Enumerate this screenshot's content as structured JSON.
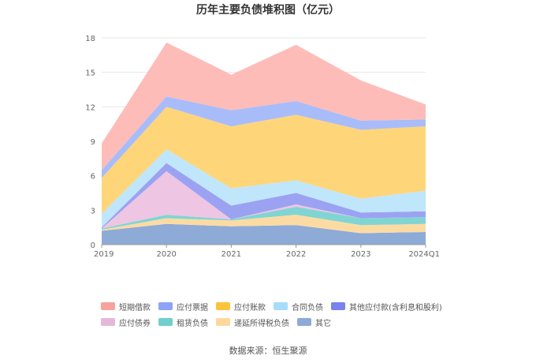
{
  "chart_data": {
    "type": "area",
    "title": "历年主要负债堆积图（亿元）",
    "categories": [
      "2019",
      "2020",
      "2021",
      "2022",
      "2023",
      "2024Q1"
    ],
    "yticks": [
      "0",
      "3",
      "6",
      "9",
      "12",
      "15",
      "18"
    ],
    "ylim": [
      0,
      18
    ],
    "grid": true,
    "legend_position": "bottom",
    "series": [
      {
        "name": "其它",
        "color": "#8eaad6",
        "values": [
          1.2,
          1.8,
          1.6,
          1.7,
          1.0,
          1.1
        ]
      },
      {
        "name": "递延所得税负债",
        "color": "#fcdba3",
        "values": [
          0.1,
          0.5,
          0.5,
          0.9,
          0.7,
          0.7
        ]
      },
      {
        "name": "租赁负债",
        "color": "#80d5d3",
        "values": [
          0.1,
          0.3,
          0.1,
          0.7,
          0.6,
          0.6
        ]
      },
      {
        "name": "应付债券",
        "color": "#eec5e2",
        "values": [
          0.0,
          3.8,
          0.0,
          0.2,
          0.0,
          0.0
        ]
      },
      {
        "name": "其他应付款(含利息和股利)",
        "color": "#9ca2f2",
        "values": [
          0.1,
          0.7,
          1.2,
          1.0,
          0.5,
          0.5
        ]
      },
      {
        "name": "合同负债",
        "color": "#bfe6fb",
        "values": [
          1.2,
          1.2,
          1.5,
          1.1,
          1.2,
          1.8
        ]
      },
      {
        "name": "应付账款",
        "color": "#fed679",
        "values": [
          3.1,
          3.7,
          5.4,
          5.7,
          6.0,
          5.6
        ]
      },
      {
        "name": "应付票据",
        "color": "#a9bcfa",
        "values": [
          0.7,
          0.9,
          1.4,
          1.2,
          0.8,
          0.6
        ]
      },
      {
        "name": "短期借款",
        "color": "#fdbcb8",
        "values": [
          2.3,
          4.7,
          3.1,
          4.9,
          3.5,
          1.3
        ]
      }
    ],
    "legend_order": [
      [
        "短期借款",
        "应付票据",
        "应付账款",
        "合同负债",
        "其他应付款(含利息和股利)"
      ],
      [
        "应付债券",
        "租赁负债",
        "递延所得税负债",
        "其它"
      ]
    ],
    "legend_colors": {
      "短期借款": "#f9a29c",
      "应付票据": "#8ca4f6",
      "应付账款": "#fcc33a",
      "合同负债": "#a7dcf9",
      "其他应付款(含利息和股利)": "#7a82ee",
      "应付债券": "#e5b8da",
      "租赁负债": "#72cfcf",
      "递延所得税负债": "#fcd89c",
      "其它": "#8eaad6"
    }
  },
  "source": "数据来源：恒生聚源"
}
